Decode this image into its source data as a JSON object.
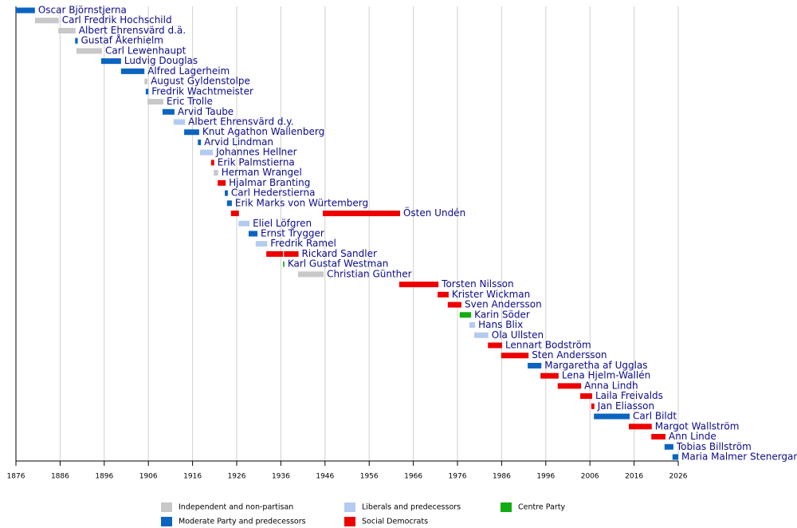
{
  "chart_data": {
    "type": "timeline",
    "xlim": [
      1876,
      2026
    ],
    "xticks": [
      1876,
      1886,
      1896,
      1906,
      1916,
      1926,
      1936,
      1946,
      1956,
      1966,
      1976,
      1986,
      1996,
      2006,
      2016,
      2026
    ],
    "grid": true,
    "parties": [
      {
        "name": "Independent and non-partisan",
        "color": "#c8c8c8"
      },
      {
        "name": "Moderate Party and predecessors",
        "color": "#0a64c0"
      },
      {
        "name": "Liberals and predecessors",
        "color": "#b4cbf0"
      },
      {
        "name": "Social Democrats",
        "color": "#ee0000"
      },
      {
        "name": "Centre Party",
        "color": "#12ad12"
      }
    ],
    "rows": [
      {
        "name": "Oscar Björnstjerna",
        "party": 1,
        "segments": [
          [
            1876.0,
            1880.3
          ]
        ]
      },
      {
        "name": "Carl Fredrik Hochschild",
        "party": 0,
        "segments": [
          [
            1880.3,
            1885.7
          ]
        ]
      },
      {
        "name": "Albert Ehrensvärd d.ä.",
        "party": 0,
        "segments": [
          [
            1885.6,
            1889.5
          ]
        ]
      },
      {
        "name": "Gustaf Åkerhielm",
        "party": 1,
        "segments": [
          [
            1889.4,
            1890.0
          ]
        ]
      },
      {
        "name": "Carl Lewenhaupt",
        "party": 0,
        "segments": [
          [
            1889.7,
            1895.5
          ]
        ]
      },
      {
        "name": "Ludvig Douglas",
        "party": 1,
        "segments": [
          [
            1895.3,
            1899.8
          ]
        ]
      },
      {
        "name": "Alfred Lagerheim",
        "party": 1,
        "segments": [
          [
            1899.8,
            1905.1
          ]
        ]
      },
      {
        "name": "August Gyldenstolpe",
        "party": 0,
        "segments": [
          [
            1905.1,
            1905.8
          ]
        ]
      },
      {
        "name": "Fredrik Wachtmeister",
        "party": 1,
        "segments": [
          [
            1905.4,
            1906.0
          ]
        ]
      },
      {
        "name": "Eric Trolle",
        "party": 0,
        "segments": [
          [
            1905.8,
            1909.4
          ]
        ]
      },
      {
        "name": "Arvid Taube",
        "party": 1,
        "segments": [
          [
            1909.2,
            1911.9
          ]
        ]
      },
      {
        "name": "Albert Ehrensvärd d.y.",
        "party": 2,
        "segments": [
          [
            1911.7,
            1914.3
          ]
        ]
      },
      {
        "name": "Knut Agathon Wallenberg",
        "party": 1,
        "segments": [
          [
            1914.1,
            1917.5
          ]
        ]
      },
      {
        "name": "Arvid Lindman",
        "party": 1,
        "segments": [
          [
            1917.2,
            1917.9
          ]
        ]
      },
      {
        "name": "Johannes Hellner",
        "party": 2,
        "segments": [
          [
            1917.7,
            1920.6
          ]
        ]
      },
      {
        "name": "Erik Palmstierna",
        "party": 3,
        "segments": [
          [
            1920.2,
            1920.9
          ]
        ]
      },
      {
        "name": "Herman Wrangel",
        "party": 0,
        "segments": [
          [
            1920.8,
            1921.8
          ]
        ]
      },
      {
        "name": "Hjalmar Branting",
        "party": 3,
        "segments": [
          [
            1921.7,
            1923.5
          ]
        ]
      },
      {
        "name": "Carl Hederstierna",
        "party": 1,
        "segments": [
          [
            1923.3,
            1924.0
          ]
        ]
      },
      {
        "name": "Erik Marks von Würtemberg",
        "party": 1,
        "segments": [
          [
            1923.8,
            1924.9
          ]
        ]
      },
      {
        "name": "Östen Undén",
        "party": 3,
        "segments": [
          [
            1924.7,
            1926.5
          ],
          [
            1945.5,
            1963.0
          ]
        ]
      },
      {
        "name": "Eliel Löfgren",
        "party": 2,
        "segments": [
          [
            1926.4,
            1928.9
          ]
        ]
      },
      {
        "name": "Ernst Trygger",
        "party": 1,
        "segments": [
          [
            1928.7,
            1930.7
          ]
        ]
      },
      {
        "name": "Fredrik Ramel",
        "party": 2,
        "segments": [
          [
            1930.3,
            1932.9
          ]
        ]
      },
      {
        "name": "Rickard Sandler",
        "party": 3,
        "segments": [
          [
            1932.7,
            1936.5
          ],
          [
            1936.7,
            1940.0
          ]
        ]
      },
      {
        "name": "Karl Gustaf Westman",
        "party": 4,
        "segments": [
          [
            1936.5,
            1936.8
          ]
        ]
      },
      {
        "name": "Christian Günther",
        "party": 0,
        "segments": [
          [
            1939.9,
            1945.7
          ]
        ]
      },
      {
        "name": "Torsten Nilsson",
        "party": 3,
        "segments": [
          [
            1962.8,
            1971.7
          ]
        ]
      },
      {
        "name": "Krister Wickman",
        "party": 3,
        "segments": [
          [
            1971.5,
            1974.0
          ]
        ]
      },
      {
        "name": "Sven Andersson",
        "party": 3,
        "segments": [
          [
            1973.8,
            1976.9
          ]
        ]
      },
      {
        "name": "Karin Söder",
        "party": 4,
        "segments": [
          [
            1976.5,
            1979.1
          ]
        ]
      },
      {
        "name": "Hans Blix",
        "party": 2,
        "segments": [
          [
            1978.7,
            1980.0
          ]
        ]
      },
      {
        "name": "Ola Ullsten",
        "party": 2,
        "segments": [
          [
            1979.8,
            1983.0
          ]
        ]
      },
      {
        "name": "Lennart Bodström",
        "party": 3,
        "segments": [
          [
            1982.9,
            1986.1
          ]
        ]
      },
      {
        "name": "Sten Andersson",
        "party": 3,
        "segments": [
          [
            1985.9,
            1992.1
          ]
        ]
      },
      {
        "name": "Margaretha af Ugglas",
        "party": 1,
        "segments": [
          [
            1991.9,
            1995.0
          ]
        ]
      },
      {
        "name": "Lena Hjelm-Wallén",
        "party": 3,
        "segments": [
          [
            1994.8,
            1998.9
          ]
        ]
      },
      {
        "name": "Anna Lindh",
        "party": 3,
        "segments": [
          [
            1998.7,
            2004.0
          ]
        ]
      },
      {
        "name": "Laila Freivalds",
        "party": 3,
        "segments": [
          [
            2003.8,
            2006.5
          ]
        ]
      },
      {
        "name": "Jan Eliasson",
        "party": 3,
        "segments": [
          [
            2006.3,
            2007.0
          ]
        ]
      },
      {
        "name": "Carl Bildt",
        "party": 1,
        "segments": [
          [
            2006.9,
            2015.0
          ]
        ]
      },
      {
        "name": "Margot Wallström",
        "party": 3,
        "segments": [
          [
            2014.8,
            2020.0
          ]
        ]
      },
      {
        "name": "Ann Linde",
        "party": 3,
        "segments": [
          [
            2019.9,
            2023.1
          ]
        ]
      },
      {
        "name": "Tobias Billström",
        "party": 1,
        "segments": [
          [
            2022.9,
            2024.9
          ]
        ]
      },
      {
        "name": "Maria Malmer Stenergard",
        "party": 1,
        "segments": [
          [
            2024.7,
            2026.0
          ]
        ]
      }
    ]
  }
}
